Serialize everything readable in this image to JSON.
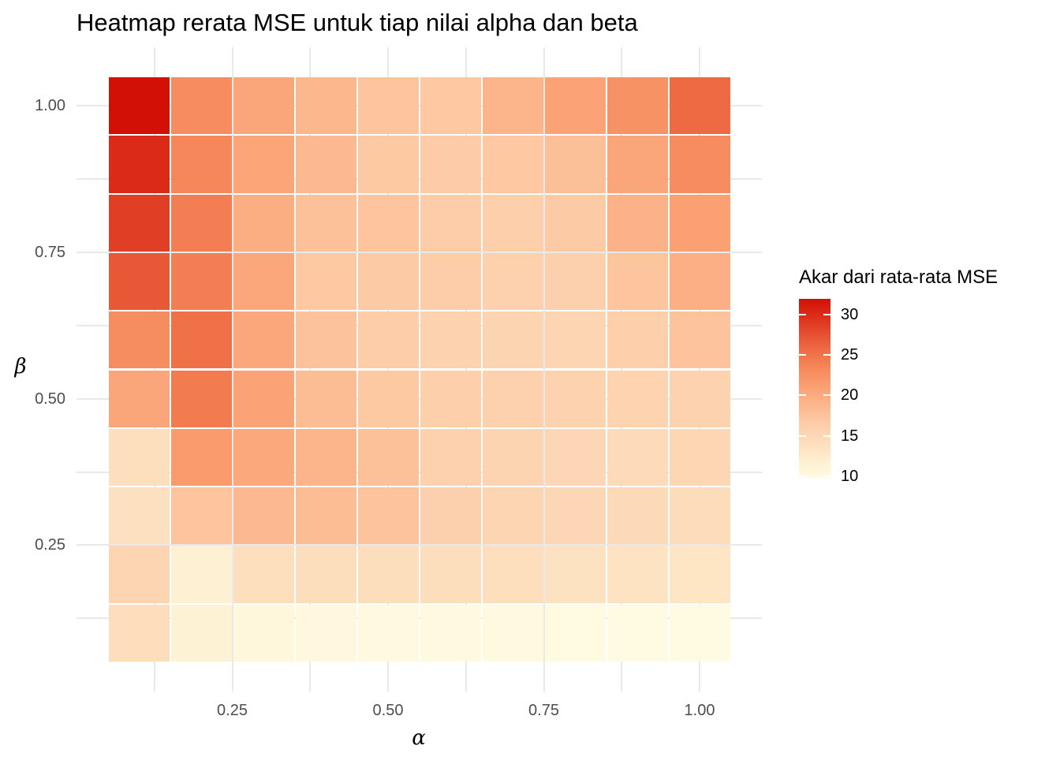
{
  "title": "Heatmap rerata MSE untuk tiap nilai alpha dan beta",
  "chart_data": {
    "type": "heatmap",
    "title": "Heatmap rerata MSE untuk tiap nilai alpha dan beta",
    "xlabel": "α",
    "ylabel": "β",
    "x_values": [
      0.1,
      0.2,
      0.3,
      0.4,
      0.5,
      0.6,
      0.7,
      0.8,
      0.9,
      1.0
    ],
    "y_values_top_to_bottom": [
      1.0,
      0.9,
      0.8,
      0.7,
      0.6,
      0.5,
      0.4,
      0.3,
      0.2,
      0.1
    ],
    "x_axis_ticks": [
      {
        "value": 0.25,
        "label": "0.25"
      },
      {
        "value": 0.5,
        "label": "0.50"
      },
      {
        "value": 0.75,
        "label": "0.75"
      },
      {
        "value": 1.0,
        "label": "1.00"
      }
    ],
    "y_axis_ticks": [
      {
        "value": 1.0,
        "label": "1.00"
      },
      {
        "value": 0.75,
        "label": "0.75"
      },
      {
        "value": 0.5,
        "label": "0.50"
      },
      {
        "value": 0.25,
        "label": "0.25"
      }
    ],
    "x_minor_gridlines": [
      0.125,
      0.375,
      0.625,
      0.875
    ],
    "y_minor_gridlines": [
      0.875,
      0.625,
      0.375,
      0.125
    ],
    "axis_range": [
      0.05,
      1.05
    ],
    "grid_on": true,
    "grid_color": "#E9E9E9",
    "tile_gap_color": "#FFFFFF",
    "axis_text_color": "#4D4D4D",
    "rows": [
      {
        "beta": 1.0,
        "values": [
          31.9,
          23.0,
          20.4,
          18.7,
          17.3,
          17.0,
          18.9,
          20.8,
          22.4,
          25.7
        ]
      },
      {
        "beta": 0.9,
        "values": [
          30.0,
          23.4,
          20.5,
          18.6,
          16.9,
          16.6,
          17.0,
          17.8,
          20.4,
          23.0
        ]
      },
      {
        "beta": 0.8,
        "values": [
          28.7,
          24.1,
          19.6,
          17.7,
          17.4,
          16.4,
          16.2,
          16.7,
          19.2,
          21.0
        ]
      },
      {
        "beta": 0.7,
        "values": [
          27.0,
          24.1,
          20.3,
          17.0,
          16.7,
          16.4,
          15.9,
          16.0,
          17.3,
          19.5
        ]
      },
      {
        "beta": 0.6,
        "values": [
          22.9,
          25.2,
          20.3,
          17.6,
          16.4,
          15.7,
          15.4,
          15.3,
          16.2,
          17.5
        ]
      },
      {
        "beta": 0.5,
        "values": [
          20.4,
          24.4,
          20.8,
          18.1,
          16.9,
          16.2,
          15.9,
          15.7,
          15.6,
          15.8
        ]
      },
      {
        "beta": 0.4,
        "values": [
          14.0,
          21.5,
          20.2,
          18.9,
          17.7,
          15.9,
          15.4,
          15.0,
          14.5,
          15.1
        ]
      },
      {
        "beta": 0.3,
        "values": [
          13.8,
          17.4,
          18.5,
          18.1,
          17.5,
          16.0,
          15.3,
          15.0,
          14.7,
          14.3
        ]
      },
      {
        "beta": 0.2,
        "values": [
          15.3,
          11.6,
          13.9,
          14.1,
          14.1,
          14.1,
          13.9,
          13.6,
          13.4,
          13.1
        ]
      },
      {
        "beta": 0.1,
        "values": [
          14.2,
          11.3,
          10.5,
          10.3,
          10.1,
          10.2,
          10.1,
          10.0,
          9.9,
          9.8
        ]
      }
    ],
    "legend": {
      "title": "Akar dari rata-rata MSE",
      "position": "right",
      "tick_labels": [
        "30",
        "25",
        "20",
        "15",
        "10"
      ],
      "tick_values": [
        30,
        25,
        20,
        15,
        10
      ],
      "domain": [
        9.8,
        31.9
      ]
    },
    "color_scale": {
      "low_to_high_stops": [
        "#FFFBE2",
        "#FEEECF",
        "#FDDDBB",
        "#FDCDA9",
        "#FCB88E",
        "#FBA275",
        "#F68B5E",
        "#F07046",
        "#E65032",
        "#DC2F1B",
        "#D21005"
      ]
    }
  }
}
